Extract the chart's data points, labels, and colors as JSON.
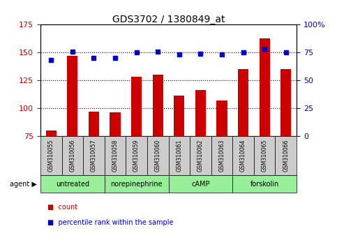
{
  "title": "GDS3702 / 1380849_at",
  "samples": [
    "GSM310055",
    "GSM310056",
    "GSM310057",
    "GSM310058",
    "GSM310059",
    "GSM310060",
    "GSM310061",
    "GSM310062",
    "GSM310063",
    "GSM310064",
    "GSM310065",
    "GSM310066"
  ],
  "counts": [
    80,
    147,
    97,
    96,
    128,
    130,
    111,
    116,
    107,
    135,
    163,
    135
  ],
  "percentile": [
    68,
    76,
    70,
    70,
    75,
    76,
    73,
    74,
    73,
    75,
    78,
    75
  ],
  "ylim_left": [
    75,
    175
  ],
  "ylim_right": [
    0,
    100
  ],
  "yticks_left": [
    75,
    100,
    125,
    150,
    175
  ],
  "yticks_right": [
    0,
    25,
    50,
    75,
    100
  ],
  "ytick_labels_right": [
    "0",
    "25",
    "50",
    "75",
    "100%"
  ],
  "bar_color": "#cc0000",
  "dot_color": "#0000cc",
  "agent_groups": [
    {
      "label": "untreated",
      "start": 0,
      "end": 2
    },
    {
      "label": "norepinephrine",
      "start": 3,
      "end": 5
    },
    {
      "label": "cAMP",
      "start": 6,
      "end": 8
    },
    {
      "label": "forskolin",
      "start": 9,
      "end": 11
    }
  ],
  "agent_color_light": "#99ee99",
  "agent_color_dark": "#66cc66",
  "sample_bg_color": "#cccccc",
  "grid_color": "#000000",
  "legend_count_color": "#cc0000",
  "legend_pct_color": "#0000cc"
}
